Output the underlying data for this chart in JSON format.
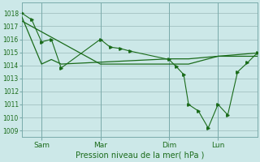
{
  "background_color": "#cce8e8",
  "grid_color": "#9ababa",
  "line_color": "#1a6b1a",
  "xlabel": "Pression niveau de la mer( hPa )",
  "ylim": [
    1008.5,
    1018.8
  ],
  "yticks": [
    1009,
    1010,
    1011,
    1012,
    1013,
    1014,
    1015,
    1016,
    1017,
    1018
  ],
  "xlim": [
    0,
    96
  ],
  "xtick_positions": [
    8,
    32,
    60,
    80
  ],
  "xtick_labels": [
    "Sam",
    "Mar",
    "Dim",
    "Lun"
  ],
  "vline_positions": [
    8,
    32,
    60,
    80
  ],
  "line1_x": [
    0,
    4,
    8,
    12,
    16,
    32,
    36,
    40,
    44,
    60,
    63,
    66,
    68,
    72,
    76,
    80,
    84,
    88,
    92,
    96
  ],
  "line1_y": [
    1018.0,
    1017.5,
    1015.8,
    1016.0,
    1013.8,
    1016.0,
    1015.4,
    1015.3,
    1015.1,
    1014.45,
    1013.9,
    1013.3,
    1011.0,
    1010.5,
    1009.2,
    1011.0,
    1010.2,
    1013.5,
    1014.2,
    1014.95
  ],
  "line2_x": [
    0,
    8,
    12,
    16,
    60,
    68,
    80,
    96
  ],
  "line2_y": [
    1017.7,
    1014.1,
    1014.45,
    1014.1,
    1014.5,
    1014.5,
    1014.7,
    1014.7
  ],
  "line3_x": [
    0,
    32,
    60,
    68,
    80,
    96
  ],
  "line3_y": [
    1017.4,
    1014.1,
    1014.1,
    1014.1,
    1014.7,
    1014.95
  ]
}
